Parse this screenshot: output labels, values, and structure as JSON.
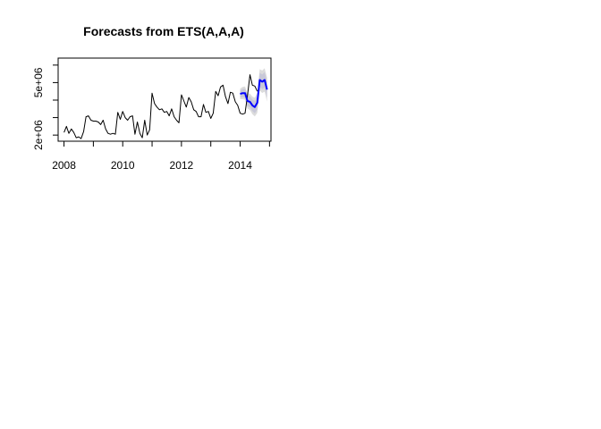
{
  "chart_data": {
    "type": "line",
    "title": "Forecasts from ETS(A,A,A)",
    "xlabel": "",
    "ylabel": "",
    "xlim": [
      2007.8,
      2015.05
    ],
    "ylim": [
      1650000,
      6400000
    ],
    "x_ticks": [
      2008,
      2009,
      2010,
      2011,
      2012,
      2013,
      2014,
      2015
    ],
    "x_tick_labels": [
      "2008",
      "",
      "2010",
      "",
      "2012",
      "",
      "2014",
      ""
    ],
    "y_ticks": [
      2000000,
      3000000,
      4000000,
      5000000,
      6000000
    ],
    "y_tick_labels": [
      "2e+06",
      "",
      "",
      "5e+06",
      ""
    ],
    "series": [
      {
        "name": "observed",
        "color": "#000000",
        "start": 2008.0,
        "frequency": 12,
        "values": [
          2150000,
          2500000,
          2100000,
          2350000,
          2150000,
          1850000,
          1900000,
          1800000,
          2200000,
          3050000,
          3100000,
          2850000,
          2800000,
          2800000,
          2750000,
          2600000,
          2850000,
          2350000,
          2100000,
          2050000,
          2100000,
          2050000,
          3300000,
          2900000,
          3350000,
          3000000,
          2850000,
          3050000,
          3100000,
          2050000,
          2750000,
          2100000,
          1850000,
          2850000,
          2000000,
          2300000,
          4400000,
          3800000,
          3600000,
          3450000,
          3500000,
          3300000,
          3350000,
          3100000,
          3500000,
          3050000,
          2850000,
          2700000,
          4300000,
          3950000,
          3600000,
          4150000,
          3900000,
          3450000,
          3350000,
          3050000,
          3050000,
          3750000,
          3300000,
          3350000,
          2950000,
          3250000,
          4500000,
          4250000,
          4750000,
          4850000,
          4200000,
          3800000,
          4450000,
          4400000,
          3900000,
          3700000,
          3250000,
          3200000,
          3250000,
          4250000,
          5450000,
          4850000,
          4800000,
          4500000
        ]
      },
      {
        "name": "point forecast",
        "color": "#0000ff",
        "start": 2014.0,
        "frequency": 12,
        "values": [
          4350000,
          4400000,
          4400000,
          3950000,
          3900000,
          3700000,
          3600000,
          3850000,
          5150000,
          5050000,
          5150000,
          4600000
        ]
      }
    ],
    "intervals": {
      "start": 2014.0,
      "frequency": 12,
      "band_80": {
        "color": "#c8c8d8",
        "lower": [
          4150000,
          4170000,
          4150000,
          3670000,
          3590000,
          3370000,
          3250000,
          3470000,
          4750000,
          4630000,
          4710000,
          4150000
        ],
        "upper": [
          4550000,
          4630000,
          4650000,
          4230000,
          4210000,
          4030000,
          3950000,
          4230000,
          5550000,
          5470000,
          5590000,
          5050000
        ]
      },
      "band_95": {
        "color": "#dcdcdc",
        "lower": [
          4050000,
          4050000,
          4020000,
          3520000,
          3430000,
          3200000,
          3070000,
          3270000,
          4540000,
          4410000,
          4480000,
          3910000
        ],
        "upper": [
          4650000,
          4750000,
          4780000,
          4380000,
          4370000,
          4200000,
          4130000,
          4430000,
          5760000,
          5690000,
          5820000,
          5290000
        ]
      }
    }
  }
}
